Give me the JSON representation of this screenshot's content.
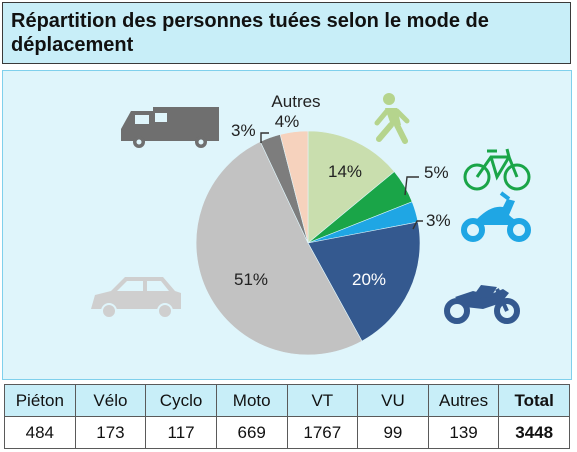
{
  "title": "Répartition des personnes tuées selon le mode de déplacement",
  "chart_data": {
    "type": "pie",
    "title": "Répartition des personnes tuées selon le mode de déplacement",
    "start_angle_deg": 0,
    "direction": "clockwise",
    "slices": [
      {
        "name": "Piéton",
        "percent": 14,
        "label": "14%",
        "color": "#c9deae"
      },
      {
        "name": "Vélo",
        "percent": 5,
        "label": "5%",
        "color": "#1aa548"
      },
      {
        "name": "Cyclo",
        "percent": 3,
        "label": "3%",
        "color": "#1fa6e4"
      },
      {
        "name": "Moto",
        "percent": 20,
        "label": "20%",
        "color": "#34598f"
      },
      {
        "name": "VT",
        "percent": 51,
        "label": "51%",
        "color": "#c2c2c2"
      },
      {
        "name": "VU",
        "percent": 3,
        "label": "3%",
        "color": "#7d7d7d"
      },
      {
        "name": "Autres",
        "percent": 4,
        "label": "4%",
        "color": "#f6d2bd"
      }
    ],
    "autres_label": "Autres",
    "icon_colors": {
      "pedestrian": "#b5d48d",
      "bicycle": "#1aa548",
      "scooter": "#1fa6e4",
      "motorcycle": "#34598f",
      "car": "#cfcfcf",
      "van": "#6f6f6f"
    }
  },
  "table": {
    "headers": [
      "Piéton",
      "Vélo",
      "Cyclo",
      "Moto",
      "VT",
      "VU",
      "Autres",
      "Total"
    ],
    "values": [
      "484",
      "173",
      "117",
      "669",
      "1767",
      "99",
      "139",
      "3448"
    ]
  }
}
